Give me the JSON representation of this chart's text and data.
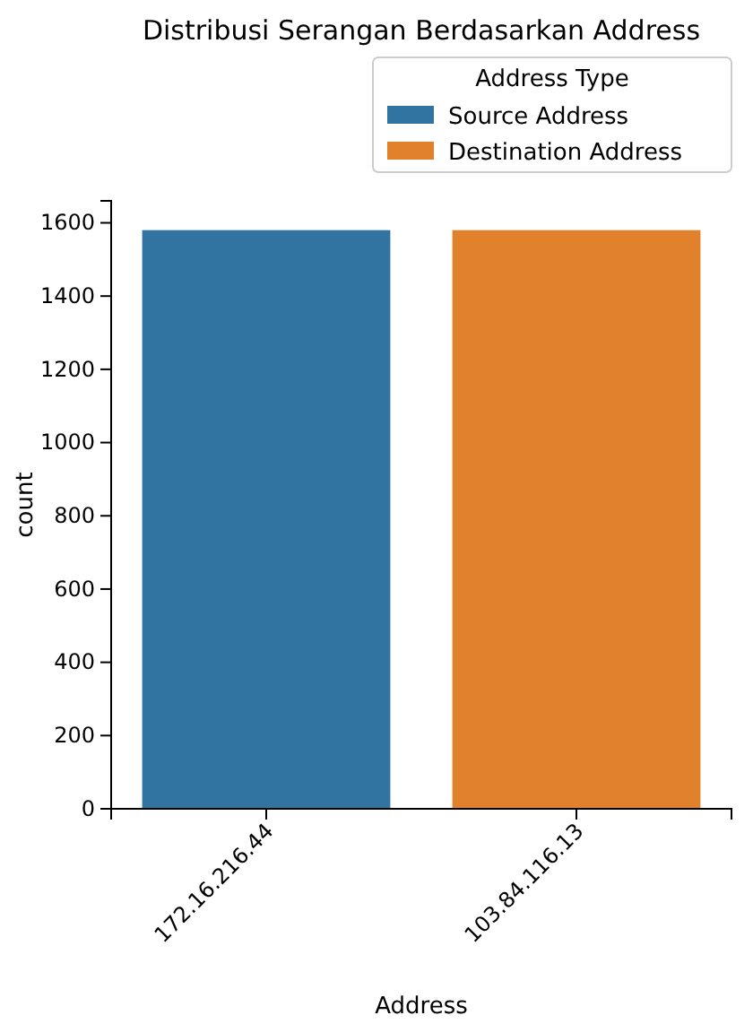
{
  "chart_data": {
    "type": "bar",
    "title": "Distribusi Serangan Berdasarkan Address",
    "xlabel": "Address",
    "ylabel": "count",
    "legend_title": "Address Type",
    "categories": [
      "172.16.216.44",
      "103.84.116.13"
    ],
    "series": [
      {
        "name": "Source Address",
        "color": "#3274a1",
        "values": [
          1580,
          null
        ]
      },
      {
        "name": "Destination Address",
        "color": "#e1812c",
        "values": [
          null,
          1580
        ]
      }
    ],
    "ylim": [
      0,
      1660
    ],
    "yticks": [
      0,
      200,
      400,
      600,
      800,
      1000,
      1200,
      1400,
      1600
    ],
    "legend": "top right"
  }
}
